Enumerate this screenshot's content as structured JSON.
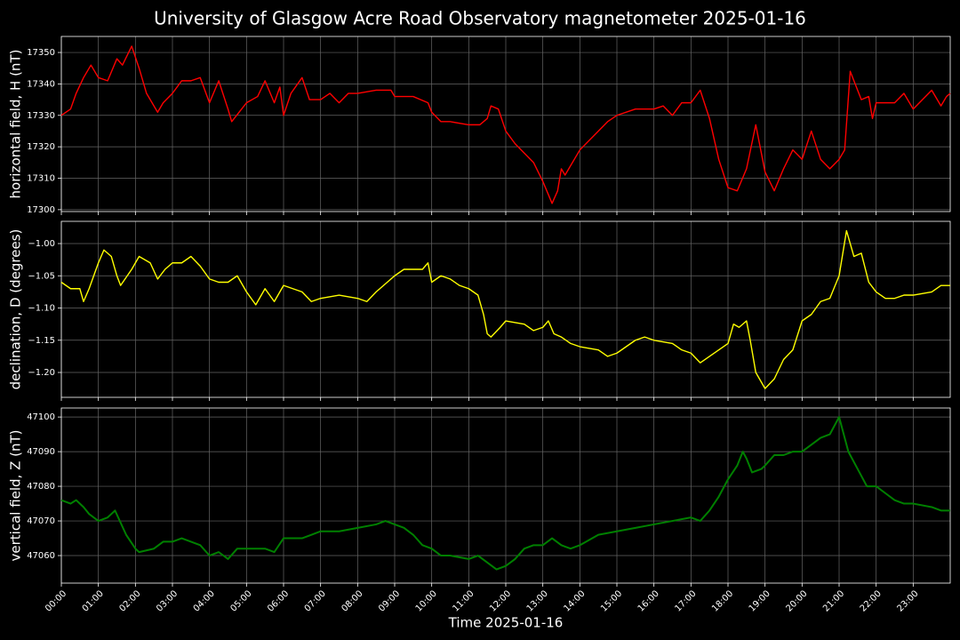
{
  "title": "University of Glasgow Acre Road Observatory magnetometer 2025-01-16",
  "chart_data": [
    {
      "type": "line",
      "ylabel": "horizontal field, H (nT)",
      "grid": true,
      "xlim": [
        0,
        24
      ],
      "ylim": [
        17299.4,
        17355.1
      ],
      "yticks": [
        17300,
        17310,
        17320,
        17330,
        17340,
        17350
      ],
      "x": [
        0,
        0.25,
        0.4,
        0.6,
        0.8,
        1.0,
        1.25,
        1.5,
        1.65,
        1.9,
        2.1,
        2.3,
        2.6,
        2.75,
        3.0,
        3.25,
        3.5,
        3.75,
        4.0,
        4.25,
        4.5,
        4.6,
        5.0,
        5.3,
        5.5,
        5.75,
        5.9,
        6.0,
        6.2,
        6.5,
        6.7,
        7.0,
        7.25,
        7.5,
        7.75,
        8.0,
        8.5,
        8.9,
        9.0,
        9.5,
        9.9,
        10.0,
        10.25,
        10.5,
        11.0,
        11.3,
        11.5,
        11.6,
        11.8,
        12.0,
        12.25,
        12.5,
        12.75,
        13.0,
        13.25,
        13.4,
        13.5,
        13.6,
        14.0,
        14.5,
        14.75,
        15.0,
        15.5,
        16.0,
        16.25,
        16.5,
        16.75,
        17.0,
        17.25,
        17.5,
        17.75,
        18.0,
        18.25,
        18.5,
        18.75,
        19.0,
        19.25,
        19.5,
        19.75,
        20.0,
        20.25,
        20.5,
        20.75,
        21.0,
        21.15,
        21.3,
        21.6,
        21.8,
        21.9,
        22.0,
        22.5,
        22.75,
        23.0,
        23.5,
        23.75,
        23.9,
        24
      ],
      "series": [
        {
          "name": "H",
          "color": "#ff0000",
          "values": [
            17330,
            17332,
            17337,
            17342,
            17346,
            17342,
            17341,
            17348,
            17346,
            17352,
            17345,
            17337,
            17331,
            17334,
            17337,
            17341,
            17341,
            17342,
            17334,
            17341,
            17332,
            17328,
            17334,
            17336,
            17341,
            17334,
            17339,
            17330,
            17337,
            17342,
            17335,
            17335,
            17337,
            17334,
            17337,
            17337,
            17338,
            17338,
            17336,
            17336,
            17334,
            17331,
            17328,
            17328,
            17327,
            17327,
            17329,
            17333,
            17332,
            17325,
            17321,
            17318,
            17315,
            17309,
            17302,
            17306,
            17313,
            17311,
            17319,
            17325,
            17328,
            17330,
            17332,
            17332,
            17333,
            17330,
            17334,
            17334,
            17338,
            17329,
            17316,
            17307,
            17306,
            17313,
            17327,
            17312,
            17306,
            17313,
            17319,
            17316,
            17325,
            17316,
            17313,
            17316,
            17319,
            17344,
            17335,
            17336,
            17329,
            17334,
            17334,
            17337,
            17332,
            17338,
            17333,
            17336,
            17337
          ]
        }
      ]
    },
    {
      "type": "line",
      "ylabel": "declination, D (degrees)",
      "grid": true,
      "xlim": [
        0,
        24
      ],
      "ylim": [
        -1.2386,
        -0.9655
      ],
      "yticks": [
        {
          "value": -1.0,
          "label": "−1.00"
        },
        {
          "value": -1.05,
          "label": "−1.05"
        },
        {
          "value": -1.1,
          "label": "−1.10"
        },
        {
          "value": -1.15,
          "label": "−1.15"
        },
        {
          "value": -1.2,
          "label": "−1.20"
        }
      ],
      "x": [
        0,
        0.25,
        0.5,
        0.6,
        0.75,
        1.0,
        1.15,
        1.35,
        1.5,
        1.6,
        1.9,
        2.1,
        2.4,
        2.6,
        2.8,
        3.0,
        3.25,
        3.5,
        3.75,
        4.0,
        4.25,
        4.5,
        4.75,
        5.0,
        5.25,
        5.5,
        5.75,
        6.0,
        6.5,
        6.75,
        7.0,
        7.5,
        8.0,
        8.25,
        8.5,
        9.0,
        9.25,
        9.5,
        9.75,
        9.9,
        10.0,
        10.25,
        10.5,
        10.75,
        11.0,
        11.25,
        11.4,
        11.5,
        11.6,
        11.85,
        12.0,
        12.5,
        12.75,
        13.0,
        13.15,
        13.3,
        13.5,
        13.75,
        14.0,
        14.5,
        14.75,
        15.0,
        15.25,
        15.5,
        15.75,
        16.0,
        16.5,
        16.75,
        17.0,
        17.25,
        17.5,
        17.75,
        18.0,
        18.15,
        18.3,
        18.5,
        18.6,
        18.75,
        19.0,
        19.25,
        19.5,
        19.75,
        20.0,
        20.25,
        20.5,
        20.75,
        21.0,
        21.2,
        21.4,
        21.6,
        21.8,
        22.0,
        22.25,
        22.5,
        22.75,
        23.0,
        23.5,
        23.75,
        24
      ],
      "series": [
        {
          "name": "D",
          "color": "#ffff00",
          "values": [
            -1.06,
            -1.07,
            -1.07,
            -1.09,
            -1.07,
            -1.03,
            -1.01,
            -1.02,
            -1.05,
            -1.065,
            -1.04,
            -1.02,
            -1.03,
            -1.055,
            -1.04,
            -1.03,
            -1.03,
            -1.02,
            -1.035,
            -1.055,
            -1.06,
            -1.06,
            -1.05,
            -1.075,
            -1.095,
            -1.07,
            -1.09,
            -1.065,
            -1.075,
            -1.09,
            -1.085,
            -1.08,
            -1.085,
            -1.09,
            -1.075,
            -1.05,
            -1.04,
            -1.04,
            -1.04,
            -1.03,
            -1.06,
            -1.05,
            -1.055,
            -1.065,
            -1.07,
            -1.08,
            -1.11,
            -1.14,
            -1.145,
            -1.13,
            -1.12,
            -1.125,
            -1.135,
            -1.13,
            -1.12,
            -1.14,
            -1.145,
            -1.155,
            -1.16,
            -1.165,
            -1.175,
            -1.17,
            -1.16,
            -1.15,
            -1.145,
            -1.15,
            -1.155,
            -1.165,
            -1.17,
            -1.185,
            -1.175,
            -1.165,
            -1.155,
            -1.125,
            -1.13,
            -1.12,
            -1.15,
            -1.2,
            -1.225,
            -1.21,
            -1.18,
            -1.165,
            -1.12,
            -1.11,
            -1.09,
            -1.085,
            -1.05,
            -0.98,
            -1.02,
            -1.015,
            -1.06,
            -1.075,
            -1.085,
            -1.085,
            -1.08,
            -1.08,
            -1.075,
            -1.065,
            -1.065
          ]
        }
      ]
    },
    {
      "type": "line",
      "ylabel": "vertical field, Z (nT)",
      "xlabel": "Time 2025-01-16",
      "grid": true,
      "xlim": [
        0,
        24
      ],
      "ylim": [
        47052.05,
        47102.6
      ],
      "yticks": [
        47060,
        47070,
        47080,
        47090,
        47100
      ],
      "xticks": [
        {
          "value": 0,
          "label": "00:00"
        },
        {
          "value": 1,
          "label": "01:00"
        },
        {
          "value": 2,
          "label": "02:00"
        },
        {
          "value": 3,
          "label": "03:00"
        },
        {
          "value": 4,
          "label": "04:00"
        },
        {
          "value": 5,
          "label": "05:00"
        },
        {
          "value": 6,
          "label": "06:00"
        },
        {
          "value": 7,
          "label": "07:00"
        },
        {
          "value": 8,
          "label": "08:00"
        },
        {
          "value": 9,
          "label": "09:00"
        },
        {
          "value": 10,
          "label": "10:00"
        },
        {
          "value": 11,
          "label": "11:00"
        },
        {
          "value": 12,
          "label": "12:00"
        },
        {
          "value": 13,
          "label": "13:00"
        },
        {
          "value": 14,
          "label": "14:00"
        },
        {
          "value": 15,
          "label": "15:00"
        },
        {
          "value": 16,
          "label": "16:00"
        },
        {
          "value": 17,
          "label": "17:00"
        },
        {
          "value": 18,
          "label": "18:00"
        },
        {
          "value": 19,
          "label": "19:00"
        },
        {
          "value": 20,
          "label": "20:00"
        },
        {
          "value": 21,
          "label": "21:00"
        },
        {
          "value": 22,
          "label": "22:00"
        },
        {
          "value": 23,
          "label": "23:00"
        }
      ],
      "x": [
        0,
        0.25,
        0.4,
        0.6,
        0.75,
        1.0,
        1.25,
        1.45,
        1.75,
        2.0,
        2.1,
        2.5,
        2.75,
        3.0,
        3.25,
        3.5,
        3.75,
        4.0,
        4.25,
        4.5,
        4.75,
        5.0,
        5.25,
        5.5,
        5.75,
        6.0,
        6.25,
        6.5,
        6.75,
        7.0,
        7.5,
        8.0,
        8.5,
        8.75,
        9.0,
        9.25,
        9.5,
        9.75,
        10.0,
        10.25,
        10.5,
        11.0,
        11.25,
        11.5,
        11.75,
        12.0,
        12.25,
        12.5,
        12.75,
        13.0,
        13.25,
        13.5,
        13.75,
        14.0,
        14.5,
        15.0,
        15.5,
        16.0,
        16.5,
        17.0,
        17.25,
        17.5,
        17.75,
        18.0,
        18.25,
        18.4,
        18.5,
        18.65,
        18.9,
        19.0,
        19.25,
        19.5,
        19.75,
        20.0,
        20.25,
        20.5,
        20.75,
        21.0,
        21.25,
        21.5,
        21.75,
        22.0,
        22.25,
        22.5,
        22.75,
        23.0,
        23.5,
        23.75,
        24
      ],
      "series": [
        {
          "name": "Z",
          "color": "#008000",
          "values": [
            47076,
            47075,
            47076,
            47074,
            47072,
            47070,
            47071,
            47073,
            47066,
            47062,
            47061,
            47062,
            47064,
            47064,
            47065,
            47064,
            47063,
            47060,
            47061,
            47059,
            47062,
            47062,
            47062,
            47062,
            47061,
            47065,
            47065,
            47065,
            47066,
            47067,
            47067,
            47068,
            47069,
            47070,
            47069,
            47068,
            47066,
            47063,
            47062,
            47060,
            47060,
            47059,
            47060,
            47058,
            47056,
            47057,
            47059,
            47062,
            47063,
            47063,
            47065,
            47063,
            47062,
            47063,
            47066,
            47067,
            47068,
            47069,
            47070,
            47071,
            47070,
            47073,
            47077,
            47082,
            47086,
            47090,
            47088,
            47084,
            47085,
            47086,
            47089,
            47089,
            47090,
            47090,
            47092,
            47094,
            47095,
            47100,
            47090,
            47085,
            47080,
            47080,
            47078,
            47076,
            47075,
            47075,
            47074,
            47073,
            47073
          ]
        }
      ]
    }
  ]
}
